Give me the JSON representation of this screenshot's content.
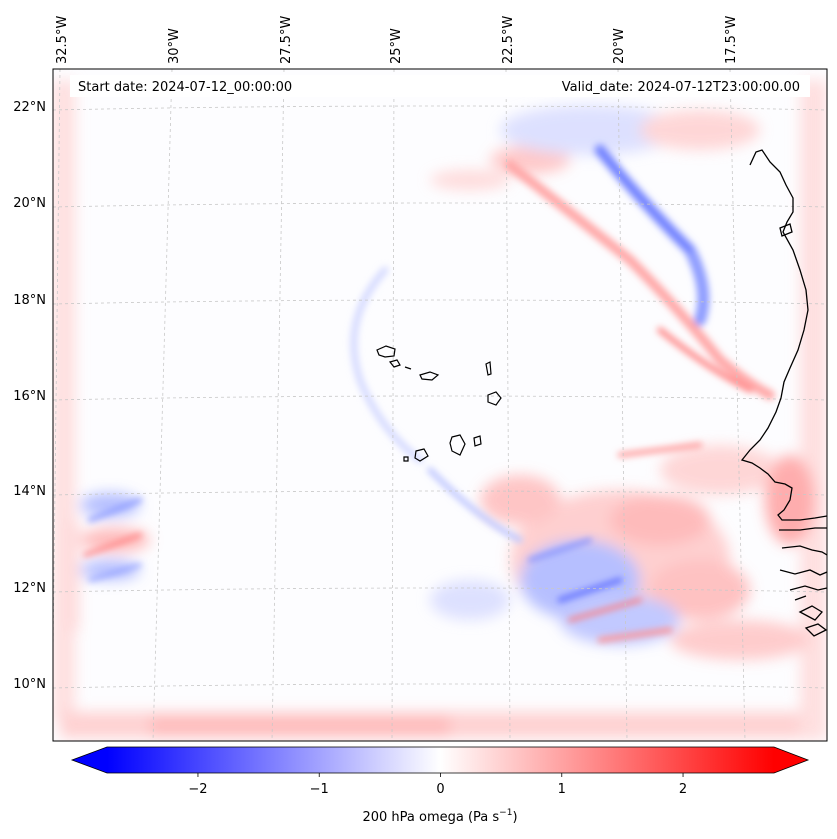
{
  "map": {
    "start_label": "Start date: 2024-07-12_00:00:00",
    "valid_label": "Valid_date: 2024-07-12T23:00:00.00",
    "lon_labels": [
      "32.5°W",
      "30°W",
      "27.5°W",
      "25°W",
      "22.5°W",
      "20°W",
      "17.5°W"
    ],
    "lat_labels": [
      "22°N",
      "20°N",
      "18°N",
      "16°N",
      "14°N",
      "12°N",
      "10°N"
    ],
    "colors": {
      "negative": "#0000ff",
      "positive": "#ff0000",
      "neutral": "#ffffff",
      "coastline": "#000000",
      "gridline": "#c8c8c8"
    }
  },
  "colorbar": {
    "label": "200 hPa omega (Pa s",
    "label_sup": "−1",
    "label_tail": ")",
    "vmin": -2.75,
    "vmax": 2.75,
    "extend": "both",
    "ticks": [
      "−2",
      "−1",
      "0",
      "1",
      "2"
    ],
    "tick_values": [
      -2,
      -1,
      0,
      1,
      2
    ]
  }
}
